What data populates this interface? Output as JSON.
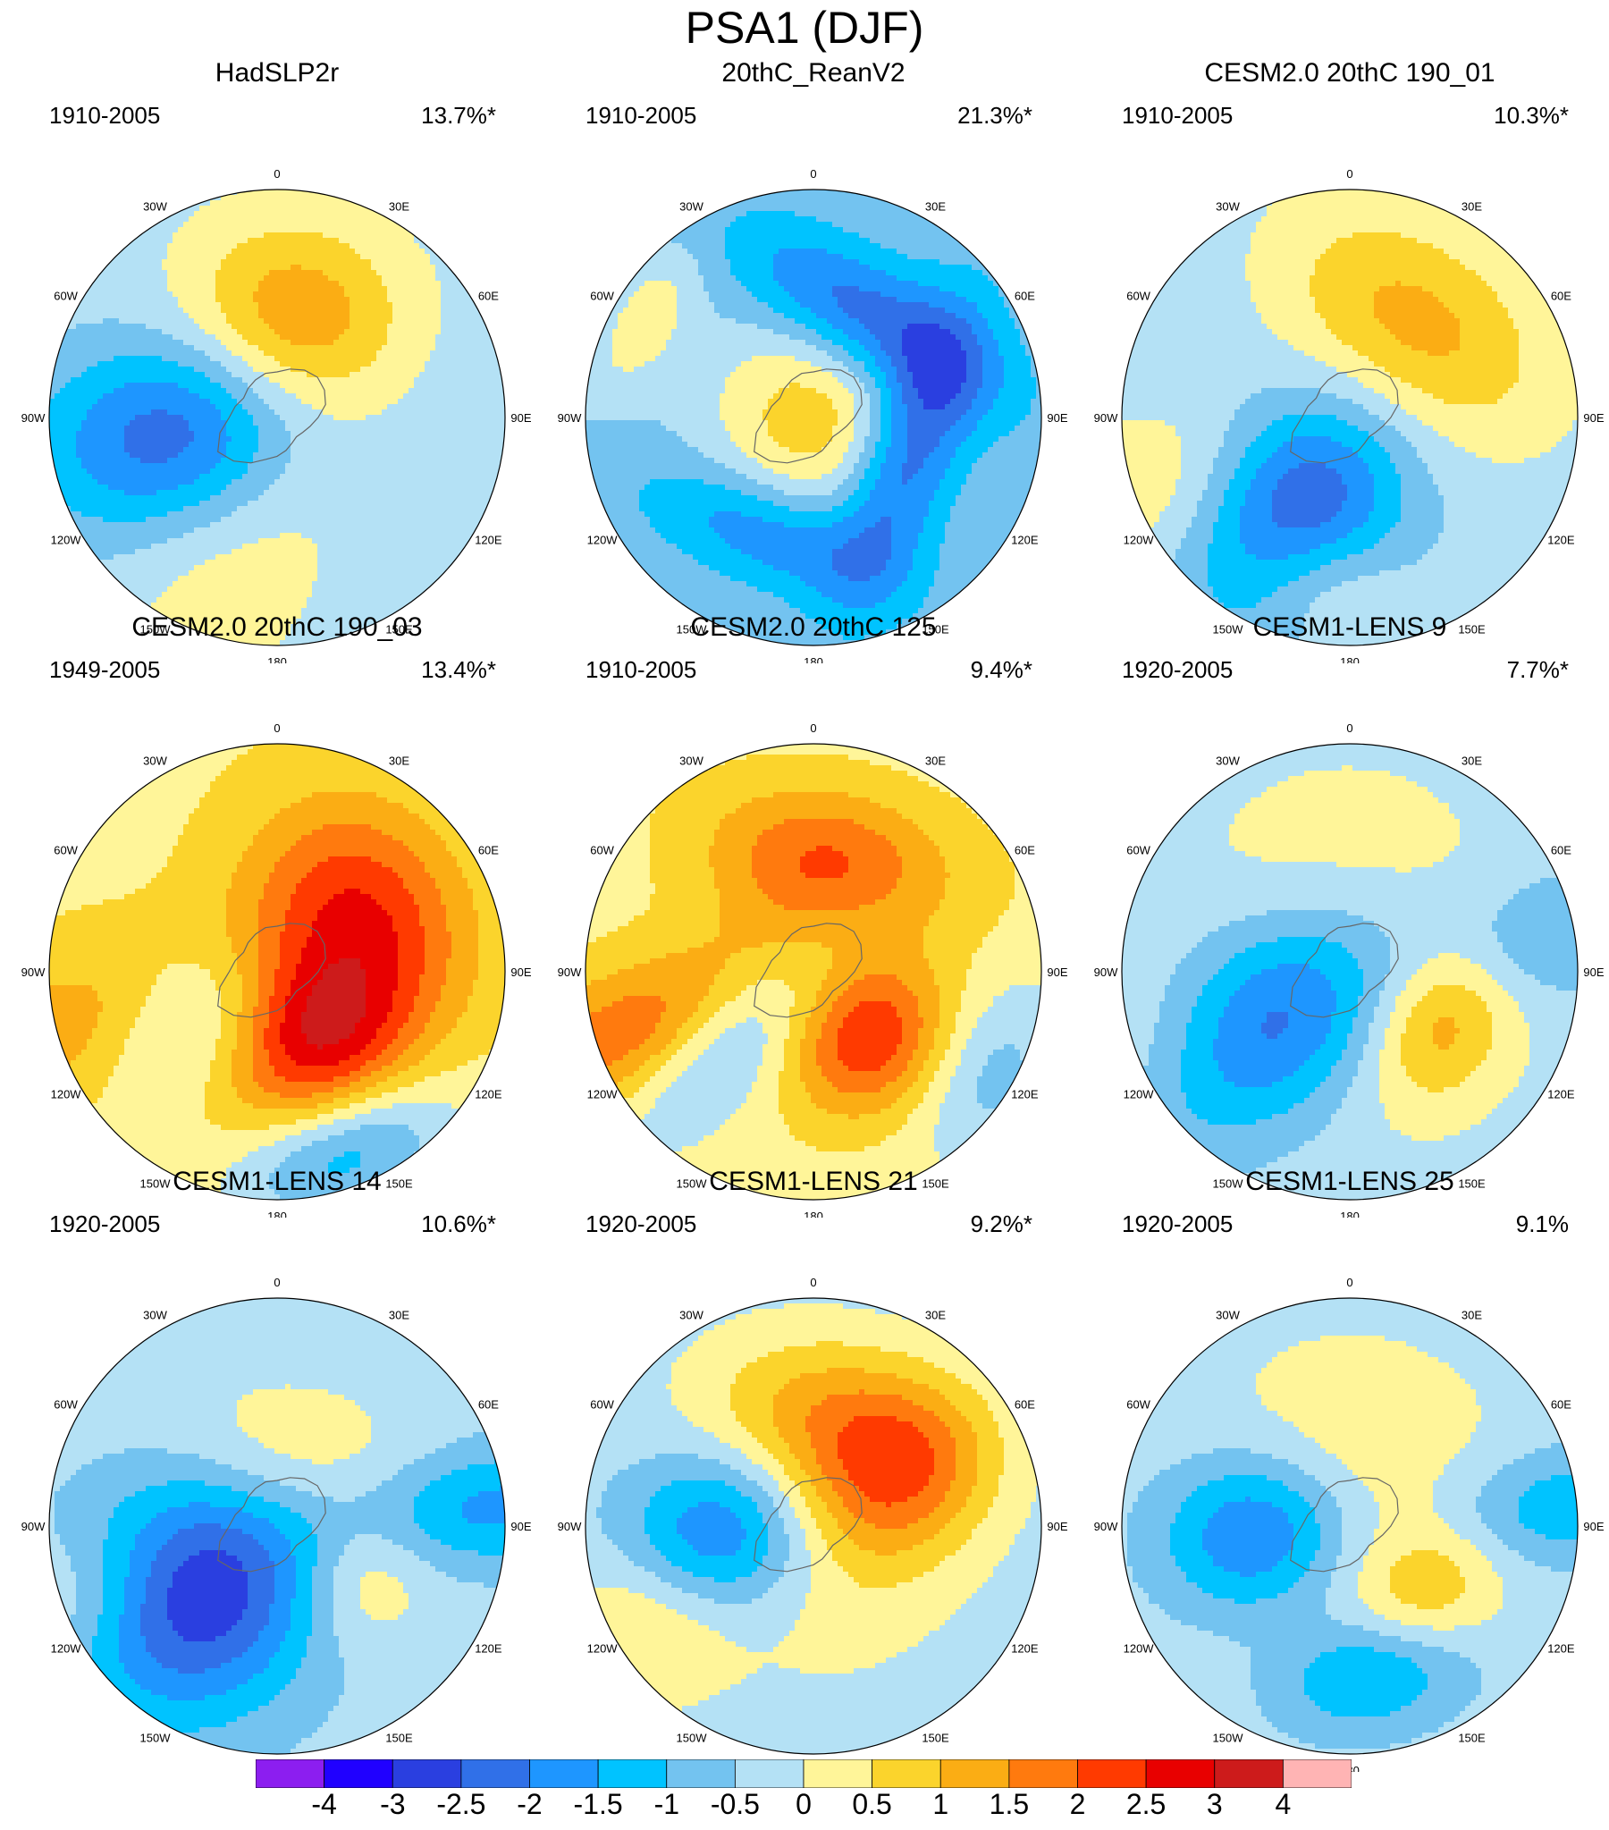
{
  "title": "PSA1 (DJF)",
  "longitude_labels": [
    "0",
    "30E",
    "60E",
    "90E",
    "120E",
    "150E",
    "180",
    "150W",
    "120W",
    "90W",
    "60W",
    "30W"
  ],
  "panels": [
    {
      "title": "HadSLP2r",
      "period": "1910-2005",
      "variance": "13.7%*",
      "background": -0.25,
      "features": [
        {
          "lon": -100,
          "r": 0.3,
          "v": -2.6,
          "sx": 0.3,
          "sy": 0.5
        },
        {
          "lon": 10,
          "r": 0.45,
          "v": 1.5,
          "sx": 0.35,
          "sy": 0.3
        },
        {
          "lon": 70,
          "r": 0.1,
          "v": 1.1,
          "sx": 0.35,
          "sy": 0.35
        },
        {
          "lon": -160,
          "r": 0.6,
          "v": 0.6,
          "sx": 0.3,
          "sy": 0.55
        }
      ]
    },
    {
      "title": "20thC_ReanV2",
      "period": "1910-2005",
      "variance": "21.3%*",
      "background": -0.6,
      "features": [
        {
          "lon": 0,
          "r": 0.0,
          "v": 1.4,
          "sx": 0.32,
          "sy": 0.32
        },
        {
          "lon": 30,
          "r": 0.5,
          "v": -1.9,
          "sx": 0.45,
          "sy": 0.18
        },
        {
          "lon": 110,
          "r": 0.45,
          "v": -1.9,
          "sx": 0.45,
          "sy": 0.16
        },
        {
          "lon": 200,
          "r": 0.55,
          "v": -1.4,
          "sx": 0.4,
          "sy": 0.16
        },
        {
          "lon": -60,
          "r": 0.85,
          "v": 0.9,
          "sx": 0.25,
          "sy": 0.12
        }
      ]
    },
    {
      "title": "CESM2.0 20thC 190_01",
      "period": "1910-2005",
      "variance": "10.3%*",
      "background": -0.3,
      "features": [
        {
          "lon": 35,
          "r": 0.5,
          "v": 1.6,
          "sx": 0.45,
          "sy": 0.3
        },
        {
          "lon": -150,
          "r": 0.35,
          "v": -2.7,
          "sx": 0.3,
          "sy": 0.45
        },
        {
          "lon": 0,
          "r": 0.05,
          "v": 0.9,
          "sx": 0.3,
          "sy": 0.3
        },
        {
          "lon": -110,
          "r": 0.85,
          "v": 0.8,
          "sx": 0.25,
          "sy": 0.45
        },
        {
          "lon": -170,
          "r": 0.75,
          "v": 1.0,
          "sx": 0.25,
          "sy": 0.2
        }
      ]
    },
    {
      "title": "CESM2.0 20thC 190_03",
      "period": "1949-2005",
      "variance": "13.4%*",
      "background": 0.4,
      "features": [
        {
          "lon": 55,
          "r": 0.45,
          "v": 2.2,
          "sx": 0.35,
          "sy": 0.3
        },
        {
          "lon": 150,
          "r": 0.35,
          "v": 2.2,
          "sx": 0.3,
          "sy": 0.25
        },
        {
          "lon": -120,
          "r": 0.35,
          "v": -1.9,
          "sx": 0.22,
          "sy": 0.45
        },
        {
          "lon": -110,
          "r": 0.8,
          "v": 1.4,
          "sx": 0.25,
          "sy": 0.45
        },
        {
          "lon": 160,
          "r": 0.85,
          "v": -1.7,
          "sx": 0.35,
          "sy": 0.18
        },
        {
          "lon": 10,
          "r": 0.0,
          "v": 1.2,
          "sx": 0.25,
          "sy": 0.25
        }
      ]
    },
    {
      "title": "CESM2.0 20thC 125",
      "period": "1910-2005",
      "variance": "9.4%*",
      "background": 0.3,
      "features": [
        {
          "lon": 10,
          "r": 0.5,
          "v": 1.6,
          "sx": 0.4,
          "sy": 0.22
        },
        {
          "lon": 140,
          "r": 0.4,
          "v": 1.8,
          "sx": 0.25,
          "sy": 0.22
        },
        {
          "lon": -130,
          "r": 0.4,
          "v": -1.8,
          "sx": 0.18,
          "sy": 0.45
        },
        {
          "lon": -110,
          "r": 0.8,
          "v": 1.7,
          "sx": 0.22,
          "sy": 0.45
        },
        {
          "lon": 120,
          "r": 0.9,
          "v": -1.0,
          "sx": 0.3,
          "sy": 0.2
        },
        {
          "lon": 0,
          "r": 0.0,
          "v": 0.9,
          "sx": 0.3,
          "sy": 0.3
        }
      ]
    },
    {
      "title": "CESM1-LENS 9",
      "period": "1920-2005",
      "variance": "7.7%*",
      "background": -0.3,
      "features": [
        {
          "lon": 0,
          "r": 0.1,
          "v": 0.9,
          "sx": 0.55,
          "sy": 0.55
        },
        {
          "lon": -120,
          "r": 0.4,
          "v": -2.8,
          "sx": 0.3,
          "sy": 0.45
        },
        {
          "lon": 120,
          "r": 0.45,
          "v": 1.3,
          "sx": 0.25,
          "sy": 0.2
        },
        {
          "lon": -110,
          "r": 0.85,
          "v": 0.9,
          "sx": 0.25,
          "sy": 0.4
        },
        {
          "lon": 80,
          "r": 0.9,
          "v": -0.9,
          "sx": 0.2,
          "sy": 0.4
        }
      ]
    },
    {
      "title": "CESM1-LENS 14",
      "period": "1920-2005",
      "variance": "10.6%*",
      "background": -0.3,
      "features": [
        {
          "lon": -130,
          "r": 0.45,
          "v": -2.7,
          "sx": 0.35,
          "sy": 0.4
        },
        {
          "lon": 10,
          "r": 0.3,
          "v": 0.9,
          "sx": 0.4,
          "sy": 0.25
        },
        {
          "lon": 120,
          "r": 0.45,
          "v": 0.9,
          "sx": 0.22,
          "sy": 0.2
        },
        {
          "lon": 85,
          "r": 0.92,
          "v": -1.4,
          "sx": 0.18,
          "sy": 0.5
        },
        {
          "lon": -110,
          "r": 0.9,
          "v": 0.8,
          "sx": 0.2,
          "sy": 0.3
        }
      ]
    },
    {
      "title": "CESM1-LENS 21",
      "period": "1920-2005",
      "variance": "9.2%*",
      "background": -0.3,
      "features": [
        {
          "lon": -95,
          "r": 0.4,
          "v": -2.3,
          "sx": 0.25,
          "sy": 0.3
        },
        {
          "lon": 10,
          "r": 0.5,
          "v": 1.2,
          "sx": 0.4,
          "sy": 0.25
        },
        {
          "lon": 60,
          "r": 0.45,
          "v": 1.6,
          "sx": 0.25,
          "sy": 0.3
        },
        {
          "lon": 0,
          "r": 0.0,
          "v": 0.9,
          "sx": 0.45,
          "sy": 0.45
        },
        {
          "lon": -120,
          "r": 0.85,
          "v": 0.9,
          "sx": 0.25,
          "sy": 0.3
        }
      ]
    },
    {
      "title": "CESM1-LENS 25",
      "period": "1920-2005",
      "variance": "9.1%",
      "background": -0.3,
      "features": [
        {
          "lon": -95,
          "r": 0.4,
          "v": -2.2,
          "sx": 0.25,
          "sy": 0.3
        },
        {
          "lon": 0,
          "r": 0.1,
          "v": 0.9,
          "sx": 0.5,
          "sy": 0.5
        },
        {
          "lon": 170,
          "r": 0.65,
          "v": -1.6,
          "sx": 0.3,
          "sy": 0.18
        },
        {
          "lon": 85,
          "r": 0.92,
          "v": -1.2,
          "sx": 0.18,
          "sy": 0.45
        },
        {
          "lon": 130,
          "r": 0.45,
          "v": 0.9,
          "sx": 0.25,
          "sy": 0.2
        }
      ]
    }
  ],
  "colorbar": {
    "labels": [
      "-4",
      "-3",
      "-2.5",
      "-2",
      "-1.5",
      "-1",
      "-0.5",
      "0",
      "0.5",
      "1",
      "1.5",
      "2",
      "2.5",
      "3",
      "4"
    ],
    "levels": [
      -4,
      -3,
      -2.5,
      -2,
      -1.5,
      -1,
      -0.5,
      0,
      0.5,
      1,
      1.5,
      2,
      2.5,
      3,
      4
    ],
    "colors": [
      "#8c1ef0",
      "#2000ff",
      "#2a3fe0",
      "#3070e8",
      "#1e96ff",
      "#00c3ff",
      "#73c3f0",
      "#b4e1f5",
      "#fff599",
      "#fbd42c",
      "#fbad14",
      "#ff7a0e",
      "#ff3a00",
      "#e80000",
      "#cd1b1b",
      "#ffb4b4"
    ]
  }
}
